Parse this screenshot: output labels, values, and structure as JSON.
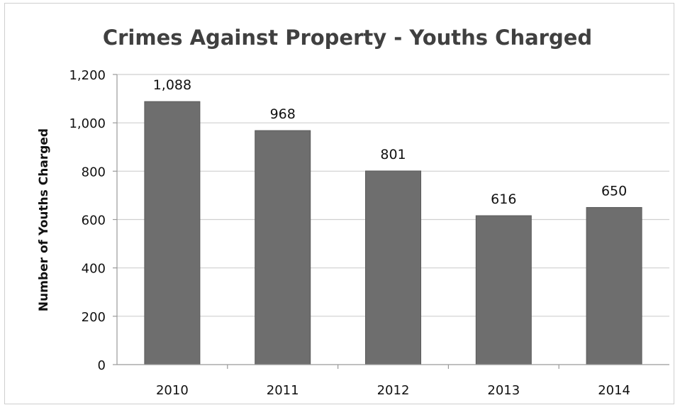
{
  "chart_data": {
    "type": "bar",
    "title": "Crimes Against Property - Youths Charged",
    "xlabel": "",
    "ylabel": "Number of Youths Charged",
    "categories": [
      "2010",
      "2011",
      "2012",
      "2013",
      "2014"
    ],
    "values": [
      1088,
      968,
      801,
      616,
      650
    ],
    "value_labels": [
      "1,088",
      "968",
      "801",
      "616",
      "650"
    ],
    "ylim": [
      0,
      1200
    ],
    "yticks": [
      0,
      200,
      400,
      600,
      800,
      1000,
      1200
    ],
    "ytick_labels": [
      "0",
      "200",
      "400",
      "600",
      "800",
      "1,000",
      "1,200"
    ],
    "grid": true,
    "legend": "none",
    "bar_color": "#6e6e6e",
    "grid_color": "#cfcfcf"
  }
}
